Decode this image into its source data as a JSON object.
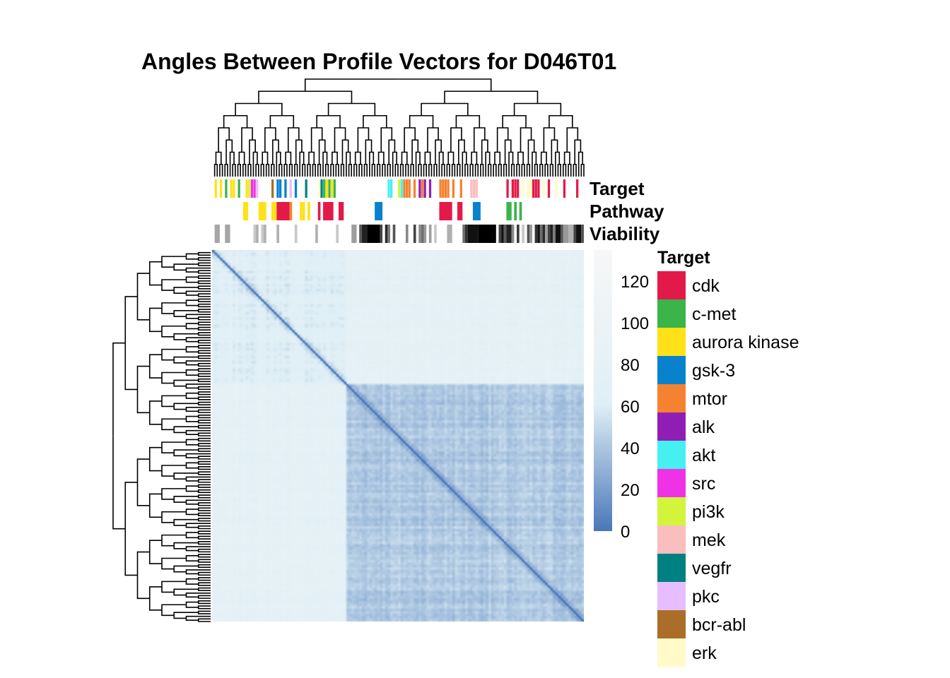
{
  "chart_data": {
    "type": "heatmap",
    "title": "Angles Between Profile Vectors for D046T01",
    "rows": 144,
    "annotation_tracks": [
      "Target",
      "Pathway",
      "Viability"
    ],
    "colorbar": {
      "ticks": [
        0,
        20,
        40,
        60,
        80,
        100,
        120
      ],
      "range": [
        0,
        135
      ],
      "low_color": "#4a77b8",
      "mid_color": "#dfeff6",
      "high_color": "#f7f7f7"
    },
    "blocks": [
      {
        "start": 0,
        "end": 52,
        "within": 65,
        "between_gap": 80
      },
      {
        "start": 52,
        "end": 144,
        "within": 42
      }
    ],
    "dendrogram_levels": 9,
    "legend": {
      "title": "Target",
      "entries": [
        {
          "label": "cdk",
          "color": "#e31a49"
        },
        {
          "label": "c-met",
          "color": "#3bb44a"
        },
        {
          "label": "aurora kinase",
          "color": "#ffe11a"
        },
        {
          "label": "gsk-3",
          "color": "#0982ce"
        },
        {
          "label": "mtor",
          "color": "#f58231"
        },
        {
          "label": "alk",
          "color": "#911eb4"
        },
        {
          "label": "akt",
          "color": "#46f0f0"
        },
        {
          "label": "src",
          "color": "#f032e6"
        },
        {
          "label": "pi3k",
          "color": "#d2f53c"
        },
        {
          "label": "mek",
          "color": "#fabebe"
        },
        {
          "label": "vegfr",
          "color": "#008080"
        },
        {
          "label": "pkc",
          "color": "#e6beff"
        },
        {
          "label": "bcr-abl",
          "color": "#aa6e28"
        },
        {
          "label": "erk",
          "color": "#fffac8"
        }
      ]
    },
    "target_track": [
      {
        "pos": 1,
        "label": "aurora kinase"
      },
      {
        "pos": 3,
        "label": "aurora kinase"
      },
      {
        "pos": 5,
        "label": "c-met"
      },
      {
        "pos": 7,
        "label": "aurora kinase"
      },
      {
        "pos": 8,
        "label": "aurora kinase"
      },
      {
        "pos": 10,
        "label": "c-met"
      },
      {
        "pos": 13,
        "label": "aurora kinase"
      },
      {
        "pos": 14,
        "label": "pi3k"
      },
      {
        "pos": 15,
        "label": "src"
      },
      {
        "pos": 16,
        "label": "src"
      },
      {
        "pos": 17,
        "label": "pkc"
      },
      {
        "pos": 23,
        "label": "bcr-abl"
      },
      {
        "pos": 25,
        "label": "gsk-3"
      },
      {
        "pos": 26,
        "label": "gsk-3"
      },
      {
        "pos": 28,
        "label": "gsk-3"
      },
      {
        "pos": 30,
        "label": "pkc"
      },
      {
        "pos": 32,
        "label": "gsk-3"
      },
      {
        "pos": 36,
        "label": "vegfr"
      },
      {
        "pos": 41,
        "label": "erk"
      },
      {
        "pos": 42,
        "label": "vegfr"
      },
      {
        "pos": 43,
        "label": "c-met"
      },
      {
        "pos": 44,
        "label": "aurora kinase"
      },
      {
        "pos": 45,
        "label": "c-met"
      },
      {
        "pos": 46,
        "label": "aurora kinase"
      },
      {
        "pos": 47,
        "label": "c-met"
      },
      {
        "pos": 68,
        "label": "akt"
      },
      {
        "pos": 69,
        "label": "akt"
      },
      {
        "pos": 72,
        "label": "pi3k"
      },
      {
        "pos": 73,
        "label": "akt"
      },
      {
        "pos": 74,
        "label": "mtor"
      },
      {
        "pos": 75,
        "label": "mtor"
      },
      {
        "pos": 76,
        "label": "mtor"
      },
      {
        "pos": 78,
        "label": "mtor"
      },
      {
        "pos": 80,
        "label": "alk"
      },
      {
        "pos": 81,
        "label": "mtor"
      },
      {
        "pos": 82,
        "label": "alk"
      },
      {
        "pos": 84,
        "label": "alk"
      },
      {
        "pos": 88,
        "label": "mtor"
      },
      {
        "pos": 89,
        "label": "mtor"
      },
      {
        "pos": 90,
        "label": "mtor"
      },
      {
        "pos": 91,
        "label": "mtor"
      },
      {
        "pos": 93,
        "label": "mtor"
      },
      {
        "pos": 96,
        "label": "mtor"
      },
      {
        "pos": 100,
        "label": "mek"
      },
      {
        "pos": 101,
        "label": "mek"
      },
      {
        "pos": 102,
        "label": "mek"
      },
      {
        "pos": 114,
        "label": "cdk"
      },
      {
        "pos": 116,
        "label": "cdk"
      },
      {
        "pos": 117,
        "label": "cdk"
      },
      {
        "pos": 118,
        "label": "cdk"
      },
      {
        "pos": 120,
        "label": "erk"
      },
      {
        "pos": 122,
        "label": "erk"
      },
      {
        "pos": 123,
        "label": "erk"
      },
      {
        "pos": 124,
        "label": "cdk"
      },
      {
        "pos": 125,
        "label": "cdk"
      },
      {
        "pos": 126,
        "label": "cdk"
      },
      {
        "pos": 128,
        "label": "erk"
      },
      {
        "pos": 130,
        "label": "cdk"
      },
      {
        "pos": 133,
        "label": "erk"
      },
      {
        "pos": 136,
        "label": "cdk"
      },
      {
        "pos": 141,
        "label": "cdk"
      }
    ],
    "pathway_track": [
      {
        "start": 12,
        "end": 14,
        "color": "#ffe11a"
      },
      {
        "start": 18,
        "end": 21,
        "color": "#ffe11a"
      },
      {
        "start": 23,
        "end": 25,
        "color": "#ffe11a"
      },
      {
        "start": 25,
        "end": 30,
        "color": "#e31a49"
      },
      {
        "start": 30,
        "end": 31,
        "color": "#f58231"
      },
      {
        "start": 34,
        "end": 35,
        "color": "#ffe11a"
      },
      {
        "start": 35,
        "end": 36,
        "color": "#ffe11a"
      },
      {
        "start": 37,
        "end": 38,
        "color": "#ffe11a"
      },
      {
        "start": 41,
        "end": 42,
        "color": "#e31a49"
      },
      {
        "start": 43,
        "end": 47,
        "color": "#e31a49"
      },
      {
        "start": 49,
        "end": 51,
        "color": "#e31a49"
      },
      {
        "start": 63,
        "end": 66,
        "color": "#0982ce"
      },
      {
        "start": 88,
        "end": 93,
        "color": "#e31a49"
      },
      {
        "start": 95,
        "end": 97,
        "color": "#e31a49"
      },
      {
        "start": 101,
        "end": 104,
        "color": "#0982ce"
      },
      {
        "start": 114,
        "end": 116,
        "color": "#3bb44a"
      },
      {
        "start": 117,
        "end": 118,
        "color": "#3bb44a"
      },
      {
        "start": 119,
        "end": 120,
        "color": "#3bb44a"
      }
    ],
    "viability_track": [
      {
        "start": 1,
        "end": 3,
        "shade": "#a6a6a6"
      },
      {
        "start": 5,
        "end": 7,
        "shade": "#a6a6a6"
      },
      {
        "start": 16,
        "end": 17,
        "shade": "#c8c8c8"
      },
      {
        "start": 17,
        "end": 18,
        "shade": "#b0b0b0"
      },
      {
        "start": 19,
        "end": 20,
        "shade": "#c8c8c8"
      },
      {
        "start": 20,
        "end": 21,
        "shade": "#b0b0b0"
      },
      {
        "start": 25,
        "end": 26,
        "shade": "#b0b0b0"
      },
      {
        "start": 32,
        "end": 33,
        "shade": "#c8c8c8"
      },
      {
        "start": 40,
        "end": 41,
        "shade": "#b0b0b0"
      },
      {
        "start": 48,
        "end": 49,
        "shade": "#c8c8c8"
      },
      {
        "start": 54,
        "end": 56,
        "shade": "#9e9e9e"
      },
      {
        "start": 57,
        "end": 58,
        "shade": "#555555"
      },
      {
        "start": 58,
        "end": 60,
        "shade": "#222222"
      },
      {
        "start": 60,
        "end": 65,
        "shade": "#000000"
      },
      {
        "start": 65,
        "end": 66,
        "shade": "#444444"
      },
      {
        "start": 67,
        "end": 68,
        "shade": "#2b2b2b"
      },
      {
        "start": 68,
        "end": 69,
        "shade": "#7a7a7a"
      },
      {
        "start": 70,
        "end": 71,
        "shade": "#555555"
      },
      {
        "start": 75,
        "end": 76,
        "shade": "#888888"
      },
      {
        "start": 78,
        "end": 79,
        "shade": "#444444"
      },
      {
        "start": 80,
        "end": 81,
        "shade": "#8a8a8a"
      },
      {
        "start": 81,
        "end": 82,
        "shade": "#6e6e6e"
      },
      {
        "start": 82,
        "end": 83,
        "shade": "#999999"
      },
      {
        "start": 84,
        "end": 85,
        "shade": "#9e9e9e"
      },
      {
        "start": 86,
        "end": 87,
        "shade": "#c8c8c8"
      },
      {
        "start": 91,
        "end": 93,
        "shade": "#b0b0b0"
      },
      {
        "start": 97,
        "end": 98,
        "shade": "#6e6e6e"
      },
      {
        "start": 98,
        "end": 99,
        "shade": "#333333"
      },
      {
        "start": 99,
        "end": 103,
        "shade": "#111111"
      },
      {
        "start": 103,
        "end": 110,
        "shade": "#000000"
      },
      {
        "start": 111,
        "end": 112,
        "shade": "#444444"
      },
      {
        "start": 112,
        "end": 113,
        "shade": "#111111"
      },
      {
        "start": 113,
        "end": 114,
        "shade": "#5a5a5a"
      },
      {
        "start": 114,
        "end": 116,
        "shade": "#222222"
      },
      {
        "start": 116,
        "end": 117,
        "shade": "#888888"
      },
      {
        "start": 118,
        "end": 119,
        "shade": "#3a3a3a"
      },
      {
        "start": 120,
        "end": 121,
        "shade": "#c8c8c8"
      },
      {
        "start": 122,
        "end": 123,
        "shade": "#555555"
      },
      {
        "start": 123,
        "end": 124,
        "shade": "#999999"
      },
      {
        "start": 125,
        "end": 126,
        "shade": "#333333"
      },
      {
        "start": 126,
        "end": 127,
        "shade": "#111111"
      },
      {
        "start": 127,
        "end": 128,
        "shade": "#6e6e6e"
      },
      {
        "start": 128,
        "end": 129,
        "shade": "#2b2b2b"
      },
      {
        "start": 129,
        "end": 130,
        "shade": "#9e9e9e"
      },
      {
        "start": 130,
        "end": 131,
        "shade": "#444444"
      },
      {
        "start": 131,
        "end": 132,
        "shade": "#222222"
      },
      {
        "start": 132,
        "end": 133,
        "shade": "#7a7a7a"
      },
      {
        "start": 133,
        "end": 135,
        "shade": "#111111"
      },
      {
        "start": 135,
        "end": 136,
        "shade": "#555555"
      },
      {
        "start": 136,
        "end": 138,
        "shade": "#999999"
      },
      {
        "start": 138,
        "end": 140,
        "shade": "#b0b0b0"
      },
      {
        "start": 140,
        "end": 141,
        "shade": "#444444"
      },
      {
        "start": 141,
        "end": 143,
        "shade": "#111111"
      },
      {
        "start": 143,
        "end": 144,
        "shade": "#555555"
      }
    ]
  }
}
